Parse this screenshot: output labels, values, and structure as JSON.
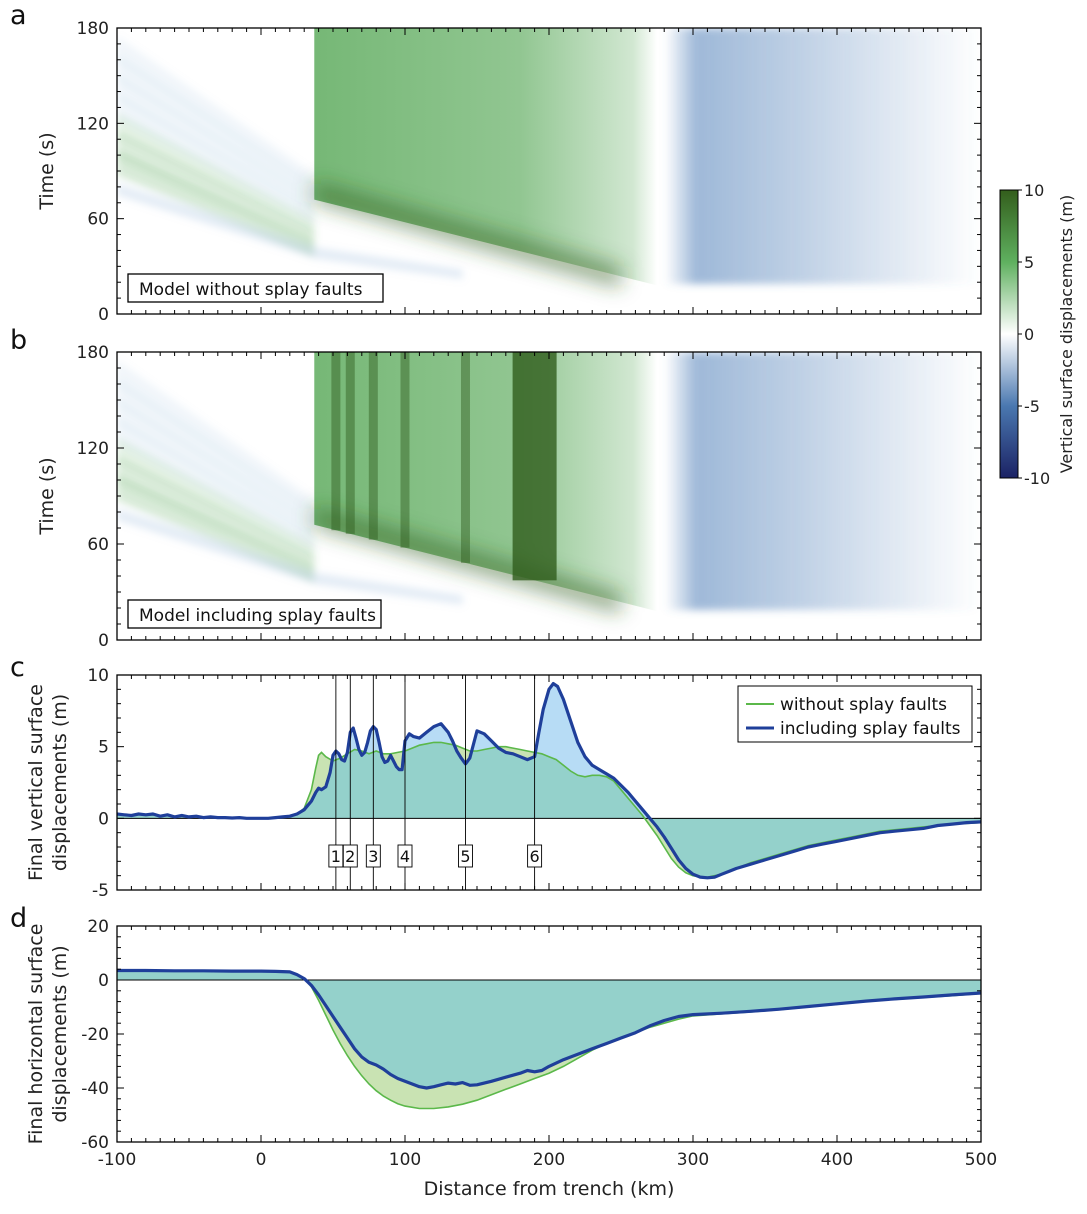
{
  "figure": {
    "panel_letters": [
      "a",
      "b",
      "c",
      "d"
    ],
    "x_axis": {
      "label": "Distance from trench (km)",
      "range": [
        -100,
        500
      ],
      "ticks": [
        -100,
        0,
        100,
        200,
        300,
        400,
        500
      ],
      "tick_labels": [
        "-100",
        "0",
        "100",
        "200",
        "300",
        "400",
        "500"
      ]
    },
    "colorbar": {
      "label": "Vertical surface displacements (m)",
      "range": [
        -10,
        10
      ],
      "ticks": [
        10,
        5,
        0,
        -5,
        -10
      ],
      "tick_labels": [
        "10",
        "5",
        "0",
        "-5",
        "-10"
      ],
      "colors": {
        "negative": "#1b2264",
        "mid_negative": "#4a78b0",
        "zero": "#ffffff",
        "mid_positive": "#5fb05f",
        "positive": "#335e1c"
      }
    },
    "colors": {
      "without": "#5bb84a",
      "including": "#1f3f9a",
      "fill_green": "#c9e3b3",
      "fill_teal": "#94d1cb",
      "fill_blue": "#b7dcf5",
      "heat_green": "#48a048",
      "heat_dark": "#2f5c1c",
      "heat_blue": "#4f7fb8"
    }
  },
  "chart_data": [
    {
      "panel": "a",
      "type": "heatmap",
      "ylabel": "Time (s)",
      "ylim": [
        0,
        180
      ],
      "y_ticks": [
        0,
        60,
        120,
        180
      ],
      "y_tick_labels": [
        "0",
        "60",
        "120",
        "180"
      ],
      "annotation": "Model without splay faults",
      "regions": [
        {
          "name": "uplift",
          "x_range": [
            37,
            275
          ],
          "onset_time_at_x": [
            [
              37,
              72
            ],
            [
              275,
              18
            ]
          ],
          "value_range": [
            2,
            8
          ]
        },
        {
          "name": "subsidence",
          "x_range": [
            285,
            500
          ],
          "value_range": [
            -3,
            0
          ]
        },
        {
          "name": "early-arrivals",
          "x_range": [
            -100,
            37
          ],
          "value_range": [
            0,
            2
          ]
        }
      ]
    },
    {
      "panel": "b",
      "type": "heatmap",
      "ylabel": "Time (s)",
      "ylim": [
        0,
        180
      ],
      "y_ticks": [
        0,
        60,
        120,
        180
      ],
      "y_tick_labels": [
        "0",
        "60",
        "120",
        "180"
      ],
      "annotation": "Model including splay faults",
      "splay_fault_x": [
        52,
        62,
        78,
        100,
        142,
        190
      ],
      "regions": [
        {
          "name": "uplift",
          "x_range": [
            37,
            275
          ],
          "onset_time_at_x": [
            [
              37,
              72
            ],
            [
              275,
              18
            ]
          ],
          "value_range": [
            2,
            10
          ]
        },
        {
          "name": "subsidence",
          "x_range": [
            285,
            500
          ],
          "value_range": [
            -3,
            0
          ]
        },
        {
          "name": "early-arrivals",
          "x_range": [
            -100,
            37
          ],
          "value_range": [
            0,
            2
          ]
        }
      ]
    },
    {
      "panel": "c",
      "type": "area",
      "ylabel_lines": [
        "Final vertical surface",
        "displacements (m)"
      ],
      "ylim": [
        -5,
        10
      ],
      "y_ticks": [
        -5,
        0,
        5,
        10
      ],
      "y_tick_labels": [
        "-5",
        "0",
        "5",
        "10"
      ],
      "legend": {
        "position": "top-right"
      },
      "fault_markers": [
        {
          "label": "1",
          "x": 52
        },
        {
          "label": "2",
          "x": 62
        },
        {
          "label": "3",
          "x": 78
        },
        {
          "label": "4",
          "x": 100
        },
        {
          "label": "5",
          "x": 142
        },
        {
          "label": "6",
          "x": 190
        }
      ],
      "series": [
        {
          "name": "without splay faults",
          "x": [
            -100,
            -95,
            -90,
            -85,
            -80,
            -75,
            -70,
            -65,
            -60,
            -55,
            -50,
            -45,
            -40,
            -35,
            -30,
            -25,
            -20,
            -15,
            -10,
            -5,
            0,
            5,
            10,
            15,
            20,
            25,
            30,
            35,
            38,
            40,
            42,
            45,
            50,
            55,
            60,
            65,
            70,
            75,
            80,
            85,
            90,
            95,
            100,
            105,
            110,
            115,
            120,
            125,
            130,
            135,
            140,
            145,
            150,
            155,
            160,
            165,
            170,
            175,
            180,
            185,
            190,
            195,
            200,
            205,
            210,
            215,
            220,
            225,
            230,
            235,
            240,
            245,
            250,
            255,
            260,
            265,
            270,
            275,
            280,
            285,
            290,
            295,
            300,
            305,
            310,
            315,
            320,
            325,
            330,
            340,
            350,
            360,
            370,
            380,
            390,
            400,
            410,
            420,
            430,
            440,
            450,
            460,
            470,
            480,
            490,
            500
          ],
          "y": [
            0.3,
            0.25,
            0.2,
            0.28,
            0.2,
            0.25,
            0.15,
            0.2,
            0.1,
            0.15,
            0.1,
            0.12,
            0.05,
            0.1,
            0.05,
            0.05,
            0.02,
            0.05,
            0.0,
            0.0,
            0.0,
            0.0,
            0.05,
            0.1,
            0.15,
            0.3,
            0.7,
            2.0,
            3.5,
            4.4,
            4.6,
            4.3,
            4.0,
            4.2,
            4.5,
            4.8,
            4.7,
            4.5,
            4.7,
            4.5,
            4.5,
            4.6,
            4.7,
            4.9,
            5.1,
            5.2,
            5.3,
            5.3,
            5.2,
            5.1,
            4.9,
            4.7,
            4.7,
            4.8,
            4.9,
            5.0,
            5.0,
            4.9,
            4.8,
            4.7,
            4.6,
            4.5,
            4.3,
            4.1,
            3.7,
            3.3,
            3.0,
            2.9,
            3.0,
            3.0,
            2.9,
            2.6,
            2.0,
            1.4,
            0.8,
            0.2,
            -0.5,
            -1.2,
            -2.0,
            -2.8,
            -3.4,
            -3.8,
            -4.0,
            -4.1,
            -4.1,
            -4.0,
            -3.9,
            -3.7,
            -3.5,
            -3.1,
            -2.8,
            -2.5,
            -2.2,
            -1.9,
            -1.7,
            -1.5,
            -1.3,
            -1.1,
            -0.9,
            -0.8,
            -0.7,
            -0.6,
            -0.5,
            -0.4,
            -0.35,
            -0.3
          ]
        },
        {
          "name": "including splay faults",
          "x": [
            -100,
            -95,
            -90,
            -85,
            -80,
            -75,
            -70,
            -65,
            -60,
            -55,
            -50,
            -45,
            -40,
            -35,
            -30,
            -25,
            -20,
            -15,
            -10,
            -5,
            0,
            5,
            10,
            15,
            20,
            25,
            30,
            35,
            38,
            40,
            42,
            45,
            48,
            50,
            52,
            54,
            56,
            58,
            60,
            62,
            64,
            66,
            68,
            70,
            72,
            74,
            76,
            78,
            80,
            82,
            84,
            86,
            88,
            90,
            92,
            94,
            96,
            98,
            100,
            103,
            106,
            110,
            115,
            120,
            125,
            130,
            133,
            136,
            139,
            142,
            145,
            150,
            155,
            160,
            165,
            170,
            175,
            180,
            185,
            190,
            193,
            196,
            200,
            203,
            206,
            210,
            215,
            220,
            225,
            230,
            235,
            240,
            245,
            250,
            255,
            260,
            265,
            270,
            275,
            280,
            285,
            290,
            295,
            300,
            305,
            310,
            315,
            320,
            325,
            330,
            340,
            350,
            360,
            370,
            380,
            390,
            400,
            410,
            420,
            430,
            440,
            450,
            460,
            470,
            480,
            490,
            500
          ],
          "y": [
            0.3,
            0.25,
            0.2,
            0.3,
            0.25,
            0.3,
            0.15,
            0.25,
            0.1,
            0.2,
            0.1,
            0.15,
            0.05,
            0.1,
            0.05,
            0.05,
            0.02,
            0.05,
            0.0,
            0.0,
            0.0,
            0.0,
            0.05,
            0.1,
            0.15,
            0.3,
            0.6,
            1.2,
            1.8,
            2.1,
            2.0,
            2.2,
            3.2,
            4.4,
            4.7,
            4.5,
            4.1,
            4.0,
            4.6,
            6.0,
            6.3,
            5.6,
            4.8,
            4.4,
            4.6,
            5.3,
            6.1,
            6.4,
            6.2,
            5.3,
            4.3,
            3.9,
            4.0,
            4.4,
            4.0,
            3.6,
            3.4,
            3.4,
            5.4,
            5.9,
            5.7,
            5.6,
            6.0,
            6.4,
            6.6,
            6.0,
            5.4,
            4.7,
            4.2,
            3.8,
            4.2,
            6.1,
            5.9,
            5.4,
            4.9,
            4.6,
            4.5,
            4.3,
            4.1,
            4.3,
            6.0,
            7.6,
            9.0,
            9.4,
            9.2,
            8.3,
            6.8,
            5.3,
            4.3,
            3.7,
            3.4,
            3.1,
            2.8,
            2.3,
            1.8,
            1.2,
            0.6,
            0.0,
            -0.6,
            -1.3,
            -2.1,
            -2.9,
            -3.5,
            -3.9,
            -4.1,
            -4.15,
            -4.1,
            -3.9,
            -3.7,
            -3.5,
            -3.2,
            -2.9,
            -2.6,
            -2.3,
            -2.0,
            -1.8,
            -1.6,
            -1.4,
            -1.2,
            -1.0,
            -0.9,
            -0.8,
            -0.7,
            -0.5,
            -0.4,
            -0.3,
            -0.25
          ]
        }
      ]
    },
    {
      "panel": "d",
      "type": "area",
      "ylabel_lines": [
        "Final horizontal surface",
        "displacements (m)"
      ],
      "ylim": [
        -60,
        20
      ],
      "y_ticks": [
        -60,
        -40,
        -20,
        0,
        20
      ],
      "y_tick_labels": [
        "-60",
        "-40",
        "-20",
        "0",
        "20"
      ],
      "series": [
        {
          "name": "without splay faults",
          "x": [
            -100,
            -80,
            -60,
            -40,
            -20,
            0,
            10,
            20,
            25,
            30,
            35,
            40,
            45,
            50,
            55,
            60,
            65,
            70,
            75,
            80,
            85,
            90,
            95,
            100,
            110,
            120,
            130,
            140,
            150,
            160,
            170,
            180,
            190,
            200,
            210,
            220,
            230,
            240,
            250,
            260,
            270,
            280,
            290,
            300,
            320,
            340,
            360,
            380,
            400,
            420,
            440,
            460,
            480,
            500
          ],
          "y": [
            3.5,
            3.5,
            3.4,
            3.4,
            3.3,
            3.3,
            3.2,
            3.0,
            2.0,
            0.5,
            -2.5,
            -7.5,
            -13.0,
            -18.5,
            -23.5,
            -28.0,
            -32.0,
            -35.5,
            -38.5,
            -41.0,
            -43.0,
            -44.5,
            -45.8,
            -46.7,
            -47.6,
            -47.6,
            -47.0,
            -46.0,
            -44.5,
            -42.5,
            -40.5,
            -38.5,
            -36.5,
            -34.5,
            -32.0,
            -29.0,
            -26.0,
            -23.5,
            -21.5,
            -19.5,
            -17.5,
            -16.0,
            -14.5,
            -13.3,
            -12.5,
            -11.8,
            -11.0,
            -10.0,
            -9.0,
            -8.0,
            -7.2,
            -6.5,
            -5.8,
            -5.0
          ]
        },
        {
          "name": "including splay faults",
          "x": [
            -100,
            -80,
            -60,
            -40,
            -20,
            0,
            10,
            20,
            25,
            30,
            35,
            40,
            45,
            50,
            55,
            60,
            65,
            70,
            75,
            80,
            85,
            90,
            95,
            100,
            105,
            110,
            115,
            120,
            125,
            130,
            135,
            140,
            145,
            150,
            160,
            170,
            180,
            185,
            190,
            195,
            200,
            210,
            220,
            230,
            240,
            250,
            260,
            270,
            280,
            290,
            300,
            320,
            340,
            360,
            380,
            400,
            420,
            440,
            460,
            480,
            500
          ],
          "y": [
            3.5,
            3.5,
            3.4,
            3.4,
            3.3,
            3.3,
            3.2,
            3.0,
            2.0,
            0.5,
            -2.0,
            -5.5,
            -9.5,
            -13.5,
            -17.5,
            -21.5,
            -25.5,
            -28.5,
            -30.5,
            -31.5,
            -33.0,
            -35.0,
            -36.5,
            -37.5,
            -38.5,
            -39.5,
            -40.0,
            -39.5,
            -38.8,
            -38.2,
            -38.5,
            -38.0,
            -39.0,
            -38.8,
            -37.5,
            -36.0,
            -34.5,
            -33.5,
            -34.0,
            -33.5,
            -32.0,
            -29.5,
            -27.5,
            -25.5,
            -23.5,
            -21.5,
            -19.5,
            -17.0,
            -15.0,
            -13.5,
            -12.8,
            -12.3,
            -11.6,
            -10.8,
            -9.8,
            -8.8,
            -7.8,
            -7.0,
            -6.3,
            -5.5,
            -4.8
          ]
        }
      ]
    }
  ]
}
